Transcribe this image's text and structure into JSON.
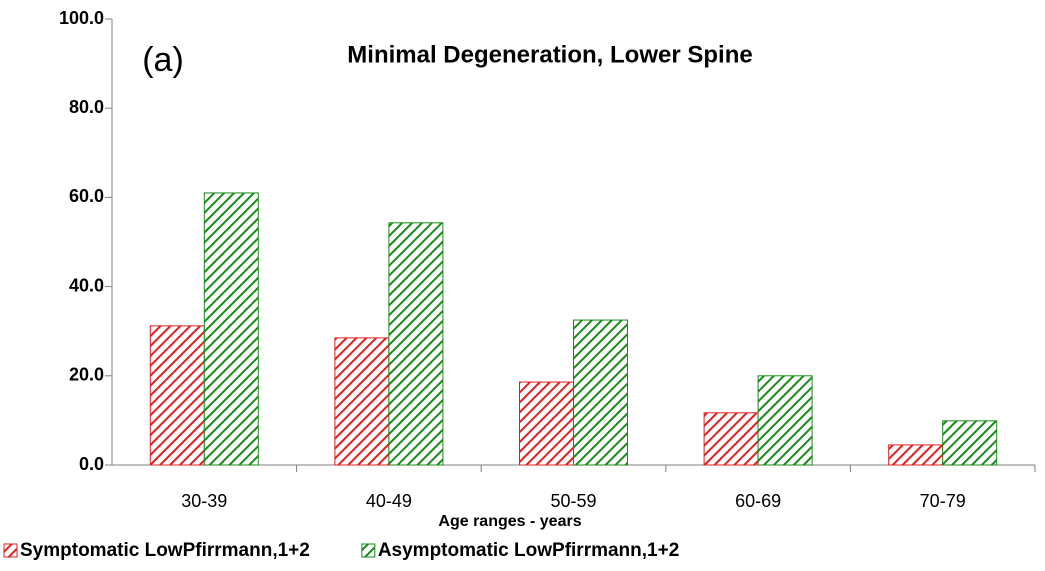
{
  "chart_data": {
    "type": "bar",
    "title": "Minimal Degeneration, Lower Spine",
    "annotation": "(a)",
    "x_label": "Age ranges - years",
    "categories": [
      "30-39",
      "40-49",
      "50-59",
      "60-69",
      "70-79"
    ],
    "series": [
      {
        "name": "Symptomatic LowPfirrmann,1+2",
        "color": "#e02020",
        "values": [
          31.2,
          28.5,
          18.6,
          11.7,
          4.5
        ]
      },
      {
        "name": "Asymptomatic LowPfirrmann,1+2",
        "color": "#1a8a1a",
        "values": [
          61.0,
          54.3,
          32.5,
          20.0,
          9.9
        ]
      }
    ],
    "ylim": [
      0,
      100
    ],
    "yticks": [
      {
        "value": 0,
        "label": "0.0"
      },
      {
        "value": 20,
        "label": "20.0"
      },
      {
        "value": 40,
        "label": "40.0"
      },
      {
        "value": 60,
        "label": "60.0"
      },
      {
        "value": 80,
        "label": "80.0"
      },
      {
        "value": 100,
        "label": "100.0"
      }
    ],
    "legend": "bottom-left",
    "hatch": true
  }
}
